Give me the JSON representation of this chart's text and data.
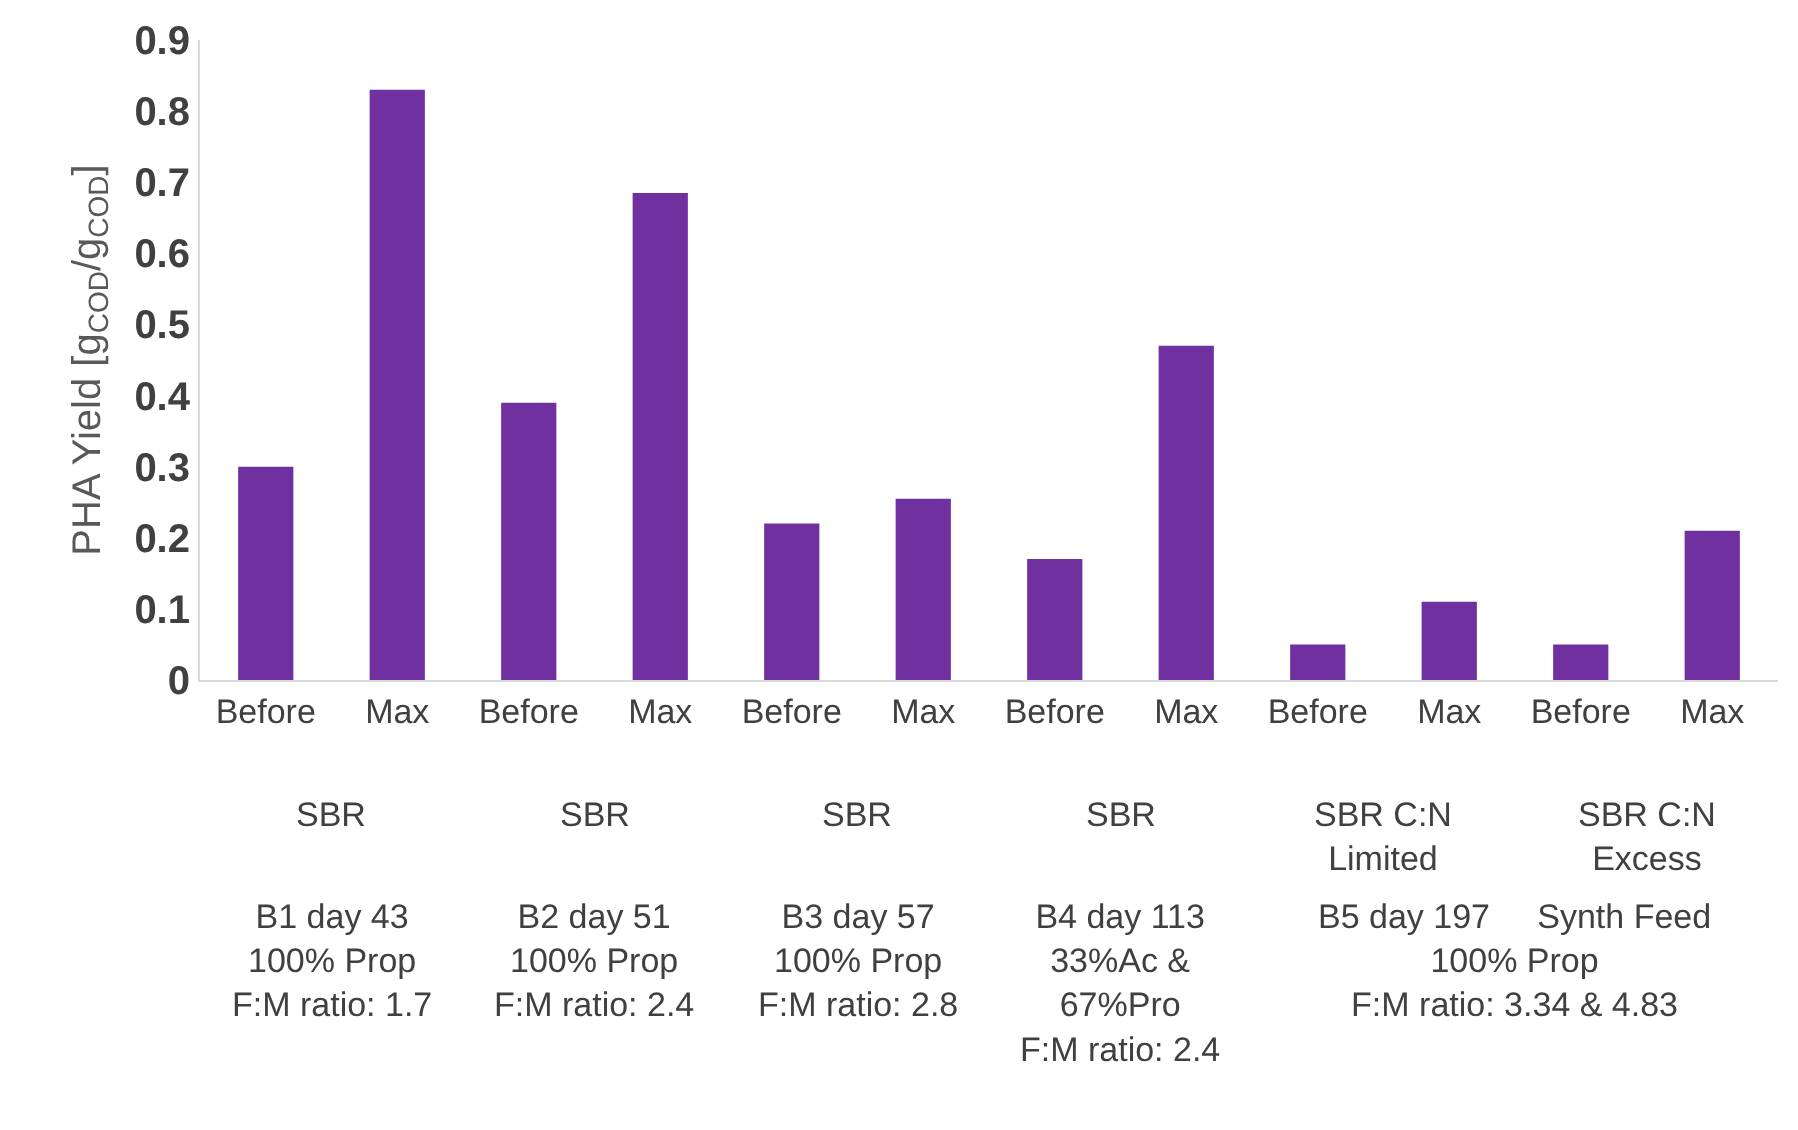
{
  "chart_data": {
    "type": "bar",
    "ylabel": "PHA Yield [g$_{COD}$/g$_{COD}$]",
    "categories": [
      "Before",
      "Max",
      "Before",
      "Max",
      "Before",
      "Max",
      "Before",
      "Max",
      "Before",
      "Max",
      "Before",
      "Max"
    ],
    "values": [
      0.3,
      0.83,
      0.39,
      0.685,
      0.22,
      0.255,
      0.17,
      0.47,
      0.05,
      0.11,
      0.05,
      0.21
    ],
    "color": "#7030a0",
    "ylim": [
      0,
      0.9
    ],
    "yticks": [
      0,
      0.1,
      0.2,
      0.3,
      0.4,
      0.5,
      0.6,
      0.7,
      0.8,
      0.9
    ],
    "grid": false,
    "annotations": [
      "SBR",
      "SBR",
      "SBR",
      "SBR",
      "SBR C:N\nLimited",
      "SBR C:N\nExcess",
      "B1 day 43\n100% Prop\nF:M ratio: 1.7",
      "B2 day 51\n100% Prop\nF:M ratio: 2.4",
      "B3 day 57\n100% Prop\nF:M ratio: 2.8",
      "B4 day 113\n33%Ac &\n67%Pro\nF:M ratio: 2.4",
      "B5 day 197     Synth Feed\n100% Prop\nF:M ratio: 3.34 & 4.83"
    ]
  }
}
